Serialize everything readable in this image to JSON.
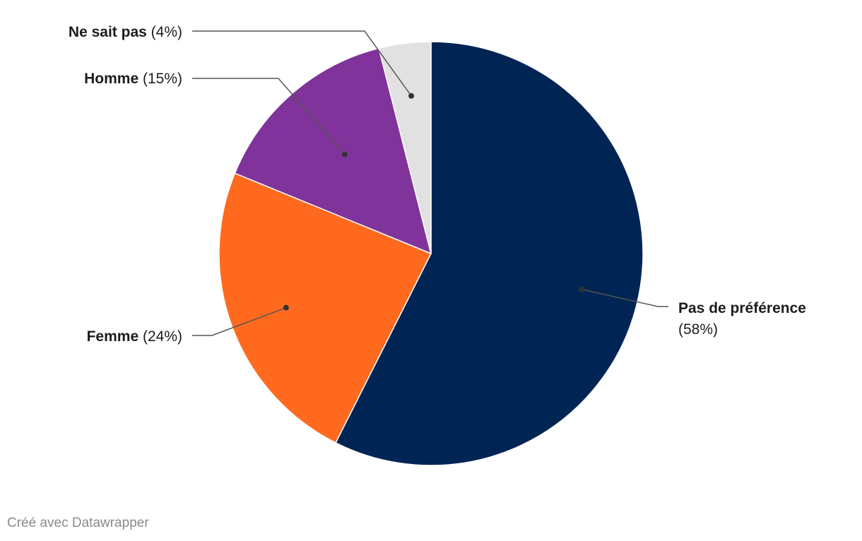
{
  "chart_data": {
    "type": "pie",
    "title": "",
    "legend": "none",
    "slices": [
      {
        "name": "Pas de préférence",
        "value": 58,
        "label_pct": "(58%)",
        "color": "#002554",
        "label_side": "right"
      },
      {
        "name": "Femme",
        "value": 24,
        "label_pct": "(24%)",
        "color": "#ff6a1f",
        "label_side": "left"
      },
      {
        "name": "Homme",
        "value": 15,
        "label_pct": "(15%)",
        "color": "#80339b",
        "label_side": "left"
      },
      {
        "name": "Ne sait pas",
        "value": 4,
        "label_pct": "(4%)",
        "color": "#e1e1e1",
        "label_side": "left"
      }
    ]
  },
  "footer": {
    "credit": "Créé avec Datawrapper"
  }
}
